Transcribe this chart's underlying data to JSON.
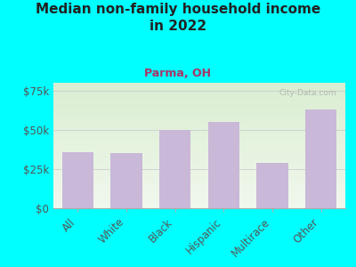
{
  "title": "Median non-family household income\nin 2022",
  "subtitle": "Parma, OH",
  "categories": [
    "All",
    "White",
    "Black",
    "Hispanic",
    "Multirace",
    "Other"
  ],
  "values": [
    36000,
    35000,
    50000,
    55000,
    29000,
    63000
  ],
  "bar_color": "#c9b8d8",
  "background_color": "#00FFFF",
  "title_color": "#222222",
  "subtitle_color": "#aa3366",
  "axis_text_color": "#555555",
  "ylabel_ticks": [
    "$0",
    "$25k",
    "$50k",
    "$75k"
  ],
  "ytick_vals": [
    0,
    25000,
    50000,
    75000
  ],
  "ylim": [
    0,
    80000
  ],
  "watermark": "City-Data.com",
  "plot_bg_top": "#f5f8ee",
  "plot_bg_bottom": "#e2eed8",
  "grid_color": "#cccccc"
}
